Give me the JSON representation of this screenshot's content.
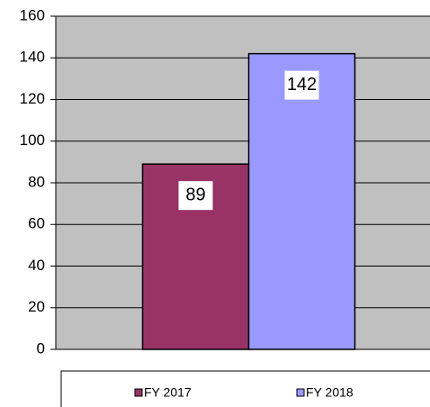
{
  "chart_data": {
    "type": "bar",
    "categories": [
      null
    ],
    "series": [
      {
        "name": "FY 2017",
        "color": "#993366",
        "values": [
          89
        ]
      },
      {
        "name": "FY 2018",
        "color": "#9999ff",
        "values": [
          142
        ]
      }
    ],
    "ylim": [
      0,
      160
    ],
    "yticks": [
      0,
      20,
      40,
      60,
      80,
      100,
      120,
      140,
      160
    ],
    "grid": true,
    "plot_background": "#c0c0c0",
    "legend": "bottom"
  }
}
